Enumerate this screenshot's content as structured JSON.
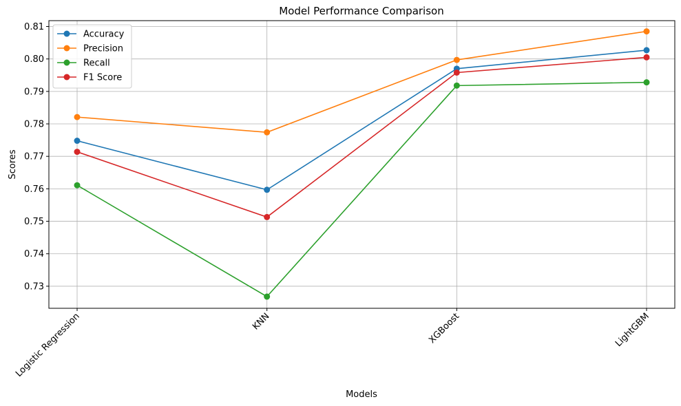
{
  "chart_data": {
    "type": "line",
    "title": "Model Performance Comparison",
    "xlabel": "Models",
    "ylabel": "Scores",
    "categories": [
      "Logistic Regression",
      "KNN",
      "XGBoost",
      "LightGBM"
    ],
    "ylim": [
      0.7232,
      0.8118
    ],
    "yticks": [
      "0.73",
      "0.74",
      "0.75",
      "0.76",
      "0.77",
      "0.78",
      "0.79",
      "0.80",
      "0.81"
    ],
    "grid": true,
    "legend_position": "top-left",
    "series": [
      {
        "name": "Accuracy",
        "color": "#1f77b4",
        "values": [
          0.7748,
          0.7597,
          0.797,
          0.8027
        ]
      },
      {
        "name": "Precision",
        "color": "#ff7f0e",
        "values": [
          0.7821,
          0.7774,
          0.7997,
          0.8085
        ]
      },
      {
        "name": "Recall",
        "color": "#2ca02c",
        "values": [
          0.7611,
          0.7268,
          0.7918,
          0.7928
        ]
      },
      {
        "name": "F1 Score",
        "color": "#d62728",
        "values": [
          0.7714,
          0.7513,
          0.7958,
          0.8005
        ]
      }
    ]
  }
}
